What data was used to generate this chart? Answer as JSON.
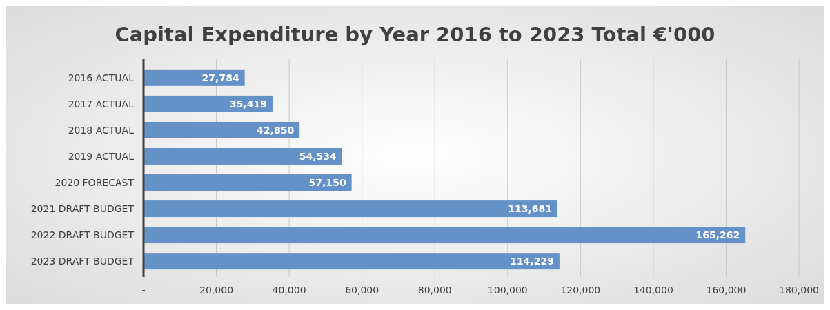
{
  "chart_data": {
    "type": "bar",
    "orientation": "horizontal",
    "title": "Capital Expenditure by Year 2016 to 2023 Total €'000",
    "categories": [
      "2016 ACTUAL",
      "2017 ACTUAL",
      "2018 ACTUAL",
      "2019 ACTUAL",
      "2020 FORECAST",
      "2021 DRAFT BUDGET",
      "2022 DRAFT BUDGET",
      "2023 DRAFT BUDGET"
    ],
    "values": [
      27784,
      35419,
      42850,
      54534,
      57150,
      113681,
      165262,
      114229
    ],
    "color": "#6591c9",
    "xlim": [
      0,
      180000
    ],
    "xticks": [
      {
        "value": 0,
        "label": "-"
      },
      {
        "value": 20000,
        "label": "20,000"
      },
      {
        "value": 40000,
        "label": "40,000"
      },
      {
        "value": 60000,
        "label": "60,000"
      },
      {
        "value": 80000,
        "label": "80,000"
      },
      {
        "value": 100000,
        "label": "100,000"
      },
      {
        "value": 120000,
        "label": "120,000"
      },
      {
        "value": 140000,
        "label": "140,000"
      },
      {
        "value": 160000,
        "label": "160,000"
      },
      {
        "value": 180000,
        "label": "180,000"
      }
    ],
    "value_labels": [
      "27,784",
      "35,419",
      "42,850",
      "54,534",
      "57,150",
      "113,681",
      "165,262",
      "114,229"
    ],
    "grid": "x"
  }
}
